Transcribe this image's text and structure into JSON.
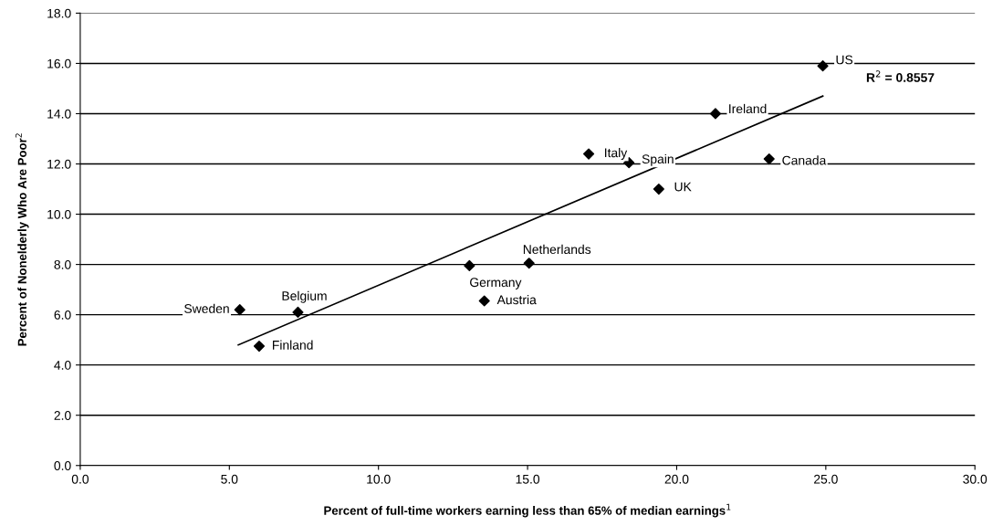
{
  "chart_data": {
    "type": "scatter",
    "xlabel": "Percent of full-time workers earning less than 65% of median earnings$^{1}$",
    "ylabel": "Percent of Nonelderly Who Are Poor$^{2}$",
    "series": [
      {
        "color": "#000000",
        "marker": "diamond",
        "x": [
          24.9,
          21.3,
          17.05,
          18.4,
          23.1,
          19.4,
          15.05,
          13.05,
          13.55,
          7.3,
          5.35,
          6.0
        ],
        "values": [
          15.9,
          14.0,
          12.4,
          12.05,
          12.2,
          11.0,
          8.05,
          7.95,
          6.55,
          6.1,
          6.2,
          4.75
        ]
      },
      {
        "type": "line",
        "color": "#000000",
        "marker": "none",
        "line_style": "solid",
        "x": [
          5.3,
          24.9
        ],
        "values": [
          4.8,
          14.7
        ]
      }
    ],
    "annotations": [
      {
        "text": "US",
        "x": 24.9,
        "y": 15.9
      },
      {
        "text": "Ireland",
        "x": 21.3,
        "y": 14.0
      },
      {
        "text": "Italy",
        "x": 17.05,
        "y": 12.4
      },
      {
        "text": "Spain",
        "x": 18.4,
        "y": 12.05
      },
      {
        "text": "Canada",
        "x": 23.1,
        "y": 12.2
      },
      {
        "text": "UK",
        "x": 19.4,
        "y": 11.0
      },
      {
        "text": "Netherlands",
        "x": 15.05,
        "y": 8.05
      },
      {
        "text": "Germany",
        "x": 13.05,
        "y": 7.95
      },
      {
        "text": "Austria",
        "x": 13.55,
        "y": 6.55
      },
      {
        "text": "Belgium",
        "x": 7.3,
        "y": 6.1
      },
      {
        "text": "Sweden",
        "x": 5.35,
        "y": 6.2
      },
      {
        "text": "Finland",
        "x": 6.0,
        "y": 4.75
      },
      "R$^{2}$ = 0.8557"
    ],
    "xlim": [
      0,
      30
    ],
    "xticks": [
      {
        "value": 0,
        "label": "0.0"
      },
      {
        "value": 5,
        "label": "5.0"
      },
      {
        "value": 10,
        "label": "10.0"
      },
      {
        "value": 15,
        "label": "15.0"
      },
      {
        "value": 20,
        "label": "20.0"
      },
      {
        "value": 25,
        "label": "25.0"
      },
      {
        "value": 30,
        "label": "30.0"
      }
    ],
    "ylim": [
      0,
      18
    ],
    "yticks": [
      {
        "value": 0,
        "label": "0.0"
      },
      {
        "value": 2,
        "label": "2.0"
      },
      {
        "value": 4,
        "label": "4.0"
      },
      {
        "value": 6,
        "label": "6.0"
      },
      {
        "value": 8,
        "label": "8.0"
      },
      {
        "value": 10,
        "label": "10.0"
      },
      {
        "value": 12,
        "label": "12.0"
      },
      {
        "value": 14,
        "label": "14.0"
      },
      {
        "value": 16,
        "label": "16.0"
      },
      {
        "value": 18,
        "label": "18.0"
      }
    ],
    "grid": "y",
    "legend": false
  }
}
